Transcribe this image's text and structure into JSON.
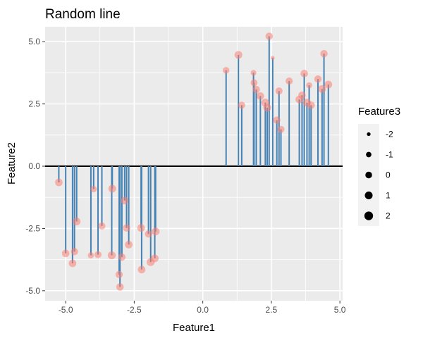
{
  "chart_data": {
    "type": "scatter",
    "title": "Random line",
    "xlabel": "Feature1",
    "ylabel": "Feature2",
    "xlim": [
      -5.75,
      5.1
    ],
    "ylim": [
      -5.4,
      5.6
    ],
    "x_ticks": [
      -5.0,
      -2.5,
      0.0,
      2.5,
      5.0
    ],
    "x_tick_labels": [
      "-5.0",
      "-2.5",
      "0.0",
      "2.5",
      "5.0"
    ],
    "y_ticks": [
      -5.0,
      -2.5,
      0.0,
      2.5,
      5.0
    ],
    "y_tick_labels": [
      "-5.0",
      "-2.5",
      "0.0",
      "2.5",
      "5.0"
    ],
    "grid": true,
    "baseline": 0,
    "stem_color": "#4682b4",
    "point_color": "#fa8072",
    "panel_background": "#ebebeb",
    "legend": {
      "title": "Feature3",
      "placement": "right",
      "labels": [
        "-2",
        "-1",
        "0",
        "1",
        "2"
      ],
      "values": [
        -2,
        -1,
        0,
        1,
        2
      ]
    },
    "points": [
      {
        "x": -5.25,
        "y": -0.65,
        "size": 0.8
      },
      {
        "x": -5.0,
        "y": -3.5,
        "size": 0.8
      },
      {
        "x": -4.75,
        "y": -3.9,
        "size": 0.8
      },
      {
        "x": -4.68,
        "y": -3.43,
        "size": 0.5
      },
      {
        "x": -4.6,
        "y": -2.22,
        "size": 1.0
      },
      {
        "x": -4.08,
        "y": -3.58,
        "size": -0.5
      },
      {
        "x": -3.98,
        "y": -0.92,
        "size": -0.3
      },
      {
        "x": -3.82,
        "y": -3.55,
        "size": 0.3
      },
      {
        "x": -3.68,
        "y": -2.4,
        "size": 0.3
      },
      {
        "x": -3.32,
        "y": -3.58,
        "size": 1.2
      },
      {
        "x": -3.3,
        "y": -0.9,
        "size": 0.9
      },
      {
        "x": -3.05,
        "y": -4.35,
        "size": 0.5
      },
      {
        "x": -3.02,
        "y": -4.85,
        "size": 0.7
      },
      {
        "x": -2.95,
        "y": -3.65,
        "size": 0.6
      },
      {
        "x": -2.85,
        "y": -1.38,
        "size": 0.7
      },
      {
        "x": -2.78,
        "y": -2.48,
        "size": 0.6
      },
      {
        "x": -2.7,
        "y": -3.15,
        "size": 0.8
      },
      {
        "x": -2.25,
        "y": -2.48,
        "size": 0.9
      },
      {
        "x": -2.23,
        "y": -4.15,
        "size": 0.8
      },
      {
        "x": -1.98,
        "y": -2.72,
        "size": 0.5
      },
      {
        "x": -1.9,
        "y": -3.85,
        "size": 1.2
      },
      {
        "x": -1.75,
        "y": -3.7,
        "size": 0.9
      },
      {
        "x": -1.72,
        "y": -2.62,
        "size": 1.1
      },
      {
        "x": 0.85,
        "y": 3.85,
        "size": 0.0
      },
      {
        "x": 1.3,
        "y": 4.47,
        "size": 1.0
      },
      {
        "x": 1.42,
        "y": 2.45,
        "size": 0.3
      },
      {
        "x": 1.85,
        "y": 3.75,
        "size": -0.8
      },
      {
        "x": 1.87,
        "y": 3.35,
        "size": 0.2
      },
      {
        "x": 1.95,
        "y": 3.08,
        "size": 0.6
      },
      {
        "x": 2.1,
        "y": 2.82,
        "size": 0.8
      },
      {
        "x": 2.28,
        "y": 2.55,
        "size": 1.3
      },
      {
        "x": 2.35,
        "y": 2.35,
        "size": 1.0
      },
      {
        "x": 2.42,
        "y": 5.22,
        "size": 0.6
      },
      {
        "x": 2.55,
        "y": 4.35,
        "size": -1.9
      },
      {
        "x": 2.7,
        "y": 1.85,
        "size": 0.5
      },
      {
        "x": 2.78,
        "y": 3.02,
        "size": 0.4
      },
      {
        "x": 2.85,
        "y": 1.48,
        "size": 0.3
      },
      {
        "x": 3.15,
        "y": 3.42,
        "size": 0.4
      },
      {
        "x": 3.52,
        "y": 2.68,
        "size": 0.9
      },
      {
        "x": 3.62,
        "y": 2.85,
        "size": 0.7
      },
      {
        "x": 3.7,
        "y": 3.72,
        "size": 0.7
      },
      {
        "x": 3.8,
        "y": 2.55,
        "size": 1.1
      },
      {
        "x": 3.88,
        "y": 3.25,
        "size": -0.6
      },
      {
        "x": 3.95,
        "y": 2.45,
        "size": 0.7
      },
      {
        "x": 4.2,
        "y": 3.5,
        "size": 0.6
      },
      {
        "x": 4.35,
        "y": 3.1,
        "size": 1.0
      },
      {
        "x": 4.42,
        "y": 4.52,
        "size": 0.6
      },
      {
        "x": 4.58,
        "y": 3.28,
        "size": 0.9
      }
    ]
  }
}
